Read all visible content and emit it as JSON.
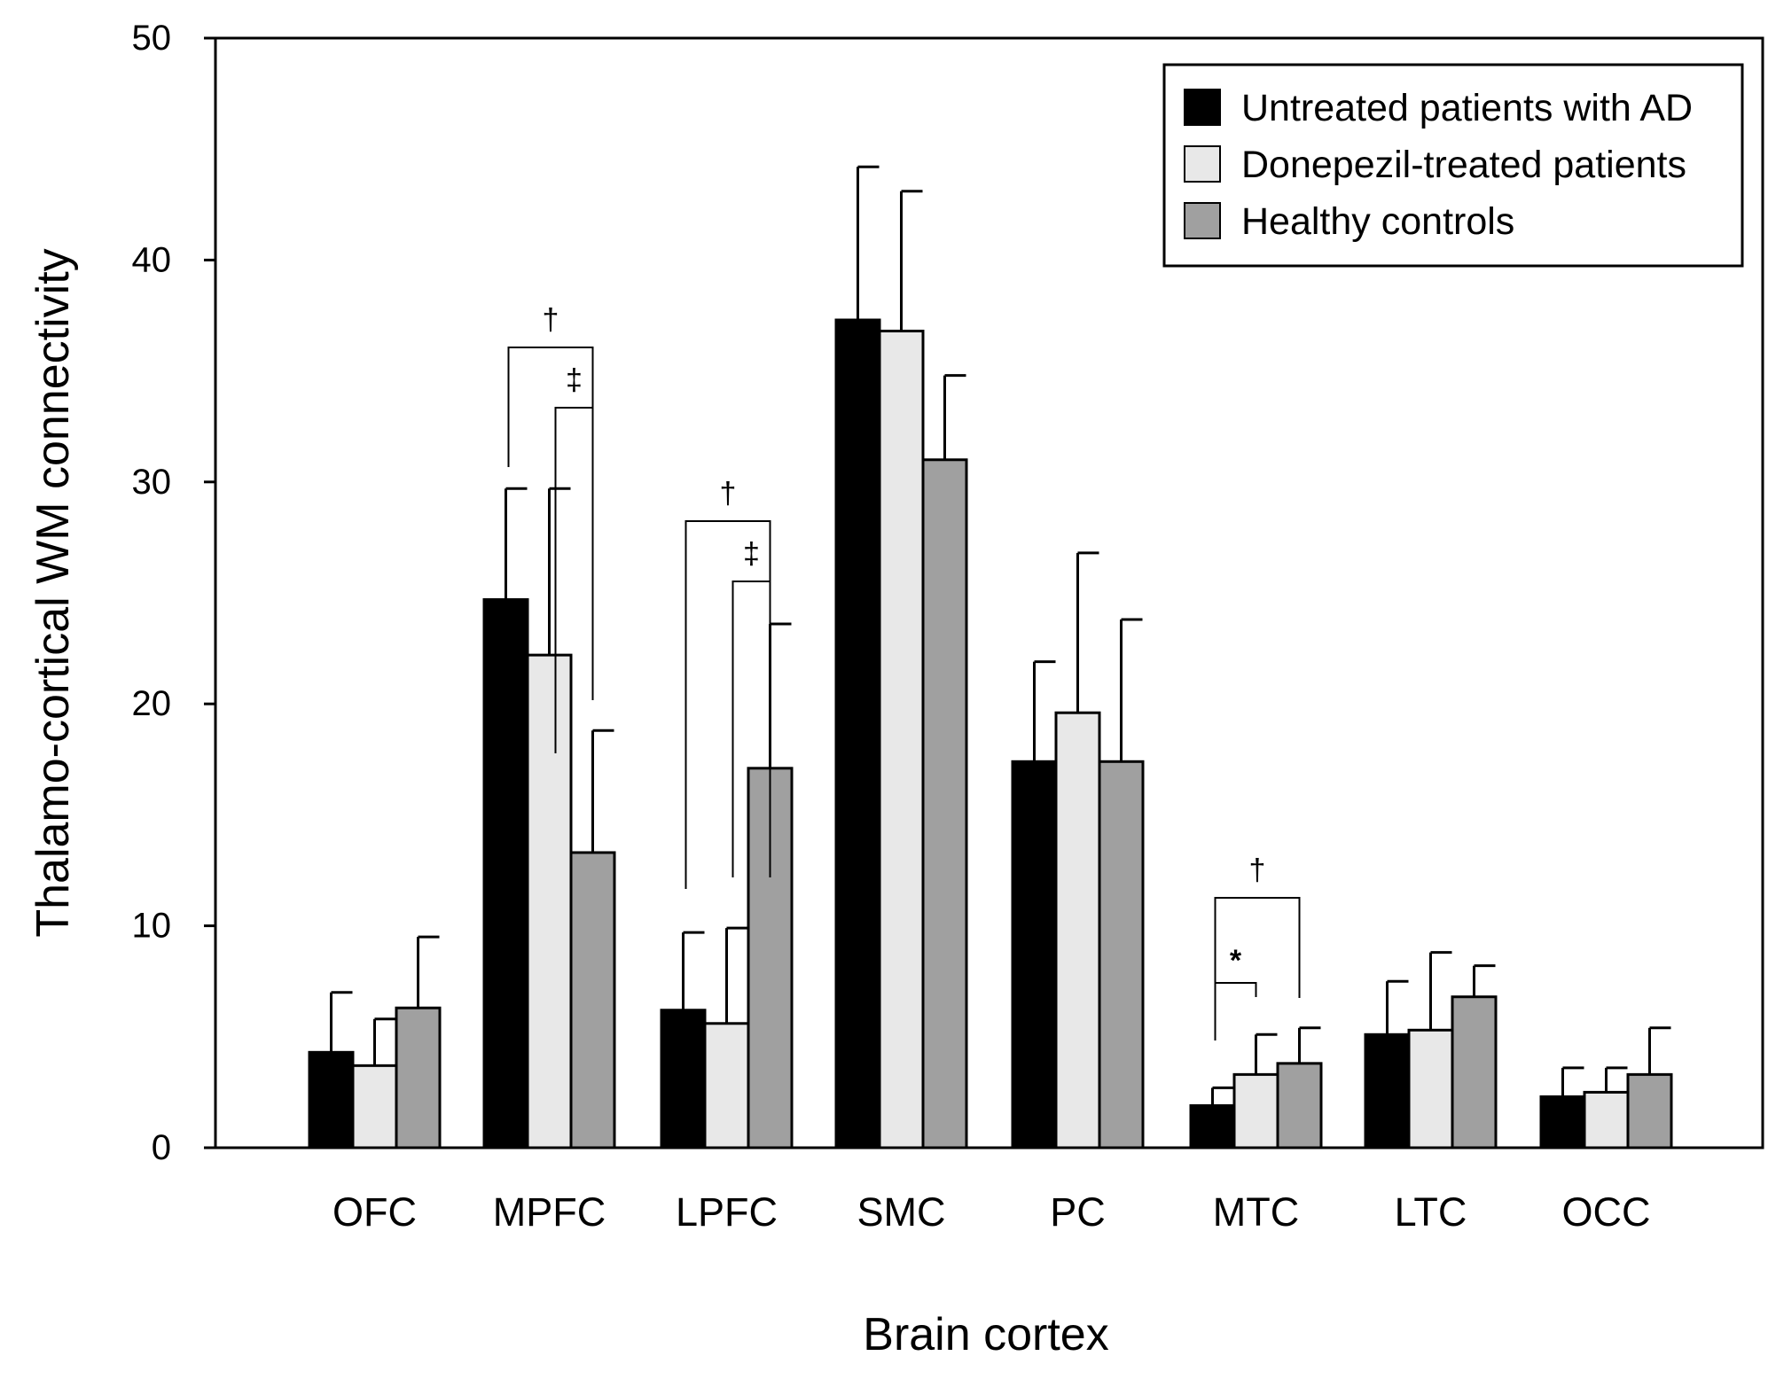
{
  "chart_data": {
    "type": "bar",
    "title": "",
    "xlabel": "Brain cortex",
    "ylabel": "Thalamo-cortical WM connectivity",
    "ylim": [
      0,
      50
    ],
    "yticks": [
      0,
      10,
      20,
      30,
      40,
      50
    ],
    "categories": [
      "OFC",
      "MPFC",
      "LPFC",
      "SMC",
      "PC",
      "MTC",
      "LTC",
      "OCC"
    ],
    "series": [
      {
        "name": "Untreated patients with AD",
        "color": "#000000",
        "values": [
          4.3,
          24.7,
          6.2,
          37.3,
          17.4,
          1.9,
          5.1,
          2.3
        ],
        "errors": [
          2.7,
          5.0,
          3.5,
          6.9,
          4.5,
          0.8,
          2.4,
          1.3
        ]
      },
      {
        "name": "Donepezil-treated patients",
        "color": "#e8e8e8",
        "values": [
          3.7,
          22.2,
          5.6,
          36.8,
          19.6,
          3.3,
          5.3,
          2.5
        ],
        "errors": [
          2.1,
          7.5,
          4.3,
          6.3,
          7.2,
          1.8,
          3.5,
          1.1
        ]
      },
      {
        "name": "Healthy controls",
        "color": "#a0a0a0",
        "values": [
          6.3,
          13.3,
          17.1,
          31.0,
          17.4,
          3.8,
          6.8,
          3.3
        ],
        "errors": [
          3.2,
          5.5,
          6.5,
          3.8,
          6.4,
          1.6,
          1.4,
          2.1
        ]
      }
    ],
    "legend_position": "top-right",
    "significance": [
      {
        "category": "MPFC",
        "from_series": 0,
        "to_series": 2,
        "symbol": "†"
      },
      {
        "category": "MPFC",
        "from_series": 1,
        "to_series": 2,
        "symbol": "‡"
      },
      {
        "category": "LPFC",
        "from_series": 0,
        "to_series": 2,
        "symbol": "†"
      },
      {
        "category": "LPFC",
        "from_series": 1,
        "to_series": 2,
        "symbol": "‡"
      },
      {
        "category": "MTC",
        "from_series": 0,
        "to_series": 2,
        "symbol": "†"
      },
      {
        "category": "MTC",
        "from_series": 0,
        "to_series": 1,
        "symbol": "*"
      }
    ]
  }
}
